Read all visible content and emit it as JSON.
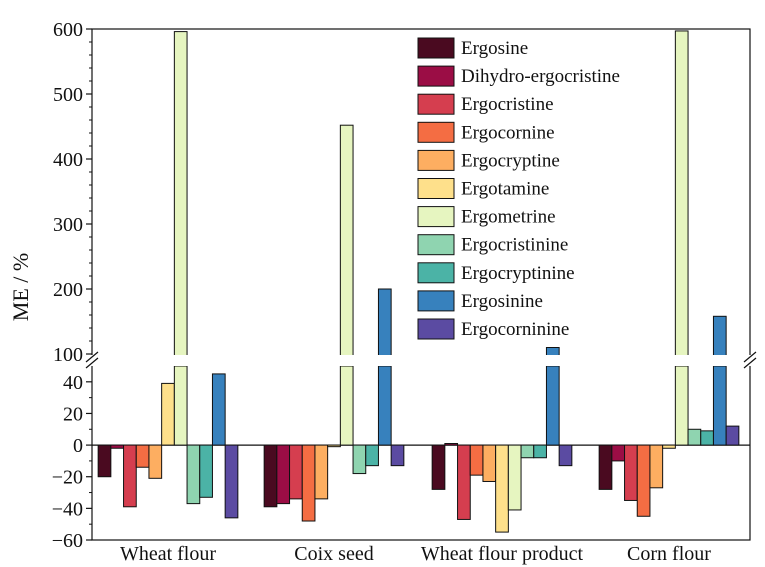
{
  "chart_data": {
    "type": "bar",
    "title": "",
    "xlabel": "",
    "ylabel": "ME / %",
    "categories": [
      "Wheat flour",
      "Coix seed",
      "Wheat flour product",
      "Corn flour"
    ],
    "axis_break": {
      "lower_ylim": [
        -60,
        50
      ],
      "upper_ylim": [
        100,
        600
      ]
    },
    "lower_yticks": [
      "−60",
      "−40",
      "−20",
      "0",
      "20",
      "40"
    ],
    "upper_yticks": [
      "100",
      "200",
      "300",
      "400",
      "500",
      "600"
    ],
    "legend_position": "top-right",
    "series": [
      {
        "name": "Ergosine",
        "color": "#4a0a20",
        "values": [
          -20,
          -39,
          -28,
          -28
        ]
      },
      {
        "name": "Dihydro-ergocristine",
        "color": "#9b0d45",
        "values": [
          -2,
          -37,
          1,
          -10
        ]
      },
      {
        "name": "Ergocristine",
        "color": "#d53e4f",
        "values": [
          -39,
          -34,
          -47,
          -35
        ]
      },
      {
        "name": "Ergocornine",
        "color": "#f46d43",
        "values": [
          -14,
          -48,
          -19,
          -45
        ]
      },
      {
        "name": "Ergocryptine",
        "color": "#fdae61",
        "values": [
          -21,
          -34,
          -23,
          -27
        ]
      },
      {
        "name": "Ergotamine",
        "color": "#fee08b",
        "values": [
          39,
          -1,
          -55,
          -2
        ]
      },
      {
        "name": "Ergometrine",
        "color": "#e6f5c0",
        "values": [
          596,
          452,
          -41,
          597
        ]
      },
      {
        "name": "Ergocristinine",
        "color": "#8fd4b0",
        "values": [
          -37,
          -18,
          -8,
          10
        ]
      },
      {
        "name": "Ergocryptinine",
        "color": "#4bb3a6",
        "values": [
          -33,
          -13,
          -8,
          9
        ]
      },
      {
        "name": "Ergosinine",
        "color": "#3781bd",
        "values": [
          45,
          200,
          110,
          158
        ]
      },
      {
        "name": "Ergocorninine",
        "color": "#5b4ba2",
        "values": [
          -46,
          -13,
          -13,
          12
        ]
      }
    ]
  }
}
